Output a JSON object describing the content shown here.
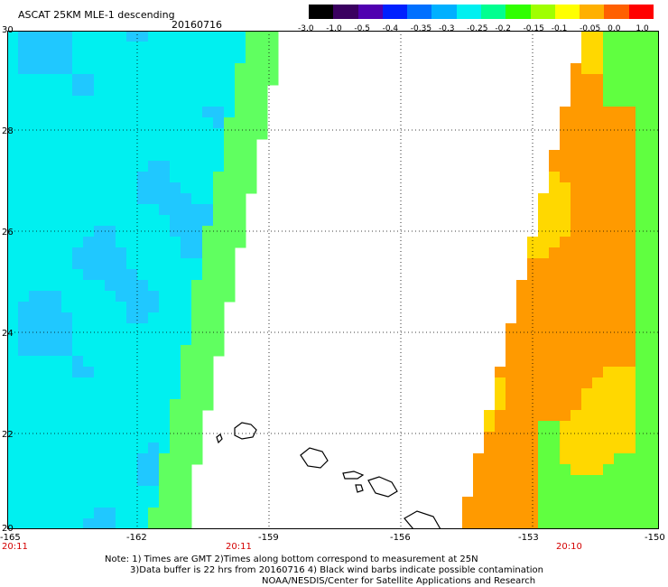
{
  "header": {
    "title": "ASCAT 25KM MLE-1 descending",
    "date": "20160716"
  },
  "colorbar": {
    "labels": [
      "-3.0",
      "-1.0",
      "-0.5",
      "-0.4",
      "-0.35",
      "-0.3",
      "-0.25",
      "-0.2",
      "-0.15",
      "-0.1",
      "-0.05",
      "0.0",
      "1.0"
    ],
    "colors": [
      "#000000",
      "#3a0060",
      "#5000b0",
      "#0020ff",
      "#0070ff",
      "#00b0ff",
      "#00f0f0",
      "#00ff90",
      "#30ff00",
      "#a0ff00",
      "#ffff00",
      "#ffb000",
      "#ff6000",
      "#ff0000"
    ]
  },
  "map": {
    "lat_labels": [
      "30",
      "28",
      "26",
      "24",
      "22",
      "20"
    ],
    "lon_labels": [
      "-165",
      "-162",
      "-159",
      "-156",
      "-153",
      "-150"
    ],
    "time_labels": [
      "20:11",
      "20:11",
      "20:10"
    ],
    "swath_colors": {
      "west_base": "#00f0f0",
      "west_blue": "#20c8ff",
      "west_green": "#60ff60",
      "east_orange": "#ff9a00",
      "east_yellow": "#ffd800",
      "east_green": "#60ff40"
    },
    "land_color": "#000000"
  },
  "footer": {
    "note_line1": "Note: 1) Times are GMT 2)Times along bottom correspond to measurement at 25N",
    "note_line2": "3)Data buffer is 22 hrs from 20160716 4) Black wind barbs indicate possible contamination",
    "credit": "NOAA/NESDIS/Center for Satellite Applications and Research"
  }
}
